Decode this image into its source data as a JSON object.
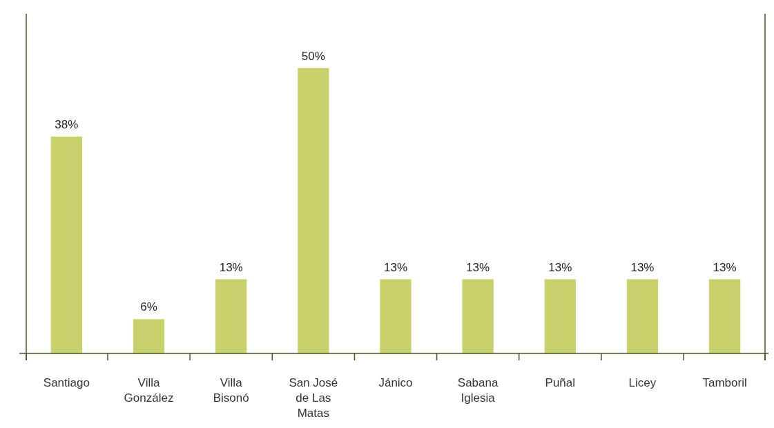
{
  "chart_data": {
    "type": "bar",
    "relative": false,
    "categories": [
      "Santiago",
      "Villa González",
      "Villa Bisonó",
      "San José de Las Matas",
      "Jánico",
      "Sabana Iglesia",
      "Puñal",
      "Licey",
      "Tamboril"
    ],
    "values": [
      38,
      6,
      13,
      50,
      13,
      13,
      13,
      13,
      13
    ],
    "value_labels": [
      "38%",
      "6%",
      "13%",
      "50%",
      "13%",
      "13%",
      "13%",
      "13%",
      "13%"
    ],
    "color": "#c8d16b"
  }
}
